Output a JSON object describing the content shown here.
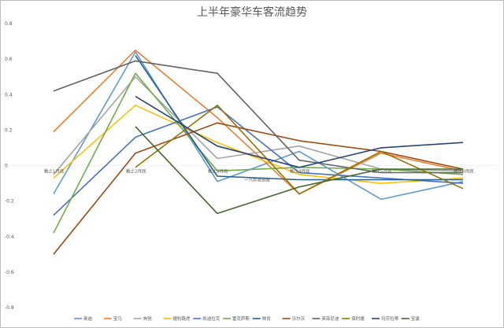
{
  "chart_data": {
    "type": "line",
    "title": "上半年豪华车客流趋势",
    "categories": [
      "截止1月底",
      "截止2月底",
      "截止3月底",
      "截止4月底",
      "截止5月底",
      "截止6月底"
    ],
    "extra_label": "一汽奔驰销售",
    "ylim": [
      -0.8,
      0.8
    ],
    "yticks": [
      "0.8",
      "0.6",
      "0.4",
      "0.2",
      "0",
      "-0.2",
      "-0.4",
      "-0.6",
      "-0.8"
    ],
    "grid": false,
    "legend_position": "bottom",
    "series": [
      {
        "name": "奥迪",
        "color": "#5b9bd5",
        "values": [
          -0.16,
          0.64,
          -0.09,
          0.08,
          -0.19,
          -0.09
        ]
      },
      {
        "name": "宝马",
        "color": "#ed7d31",
        "values": [
          0.19,
          0.65,
          0.27,
          -0.16,
          0.07,
          -0.03
        ]
      },
      {
        "name": "奔驰",
        "color": "#a5a5a5",
        "values": [
          -0.05,
          0.5,
          0.04,
          0.11,
          -0.02,
          -0.03
        ]
      },
      {
        "name": "捷豹路虎",
        "color": "#ffc000",
        "values": [
          -0.07,
          0.34,
          0.13,
          -0.05,
          -0.1,
          -0.07
        ]
      },
      {
        "name": "凯迪拉克",
        "color": "#4472c4",
        "values": [
          -0.28,
          0.16,
          0.33,
          -0.04,
          -0.07,
          -0.1
        ]
      },
      {
        "name": "雷克萨斯",
        "color": "#70ad47",
        "values": [
          -0.38,
          0.52,
          -0.03,
          -0.01,
          -0.02,
          -0.05
        ]
      },
      {
        "name": "林肯",
        "color": "#255e91",
        "values": [
          null,
          0.62,
          -0.06,
          -0.08,
          -0.08,
          -0.08
        ]
      },
      {
        "name": "沃尔沃",
        "color": "#9e480e",
        "values": [
          -0.5,
          0.07,
          0.24,
          0.14,
          0.08,
          -0.02
        ]
      },
      {
        "name": "英菲尼迪",
        "color": "#636363",
        "values": [
          0.42,
          0.59,
          0.52,
          0.03,
          -0.04,
          -0.04
        ]
      },
      {
        "name": "保时捷",
        "color": "#997300",
        "values": [
          null,
          -0.01,
          0.34,
          -0.16,
          0.08,
          -0.13
        ]
      },
      {
        "name": "玛莎拉蒂",
        "color": "#264478",
        "values": [
          null,
          0.39,
          0.11,
          -0.01,
          0.1,
          0.13
        ]
      },
      {
        "name": "宝骏",
        "color": "#43682b",
        "values": [
          null,
          0.22,
          -0.27,
          -0.12,
          -0.02,
          -0.02
        ]
      }
    ]
  }
}
